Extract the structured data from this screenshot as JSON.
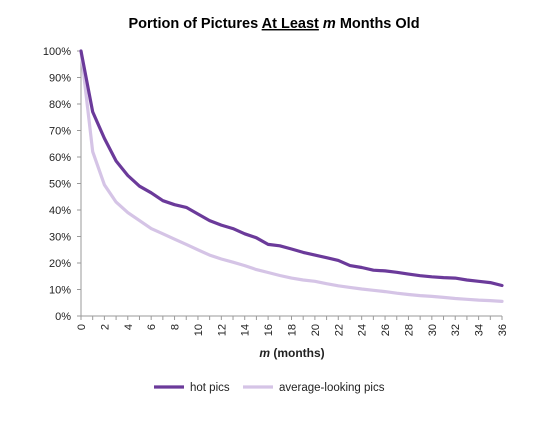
{
  "chart_data": {
    "type": "line",
    "title": {
      "prefix": "Portion of Pictures ",
      "underlined": "At Least",
      "middle": " ",
      "italic": "m",
      "suffix": " Months Old"
    },
    "xlabel": {
      "italic": "m",
      "rest": " (months)"
    },
    "ylabel": "",
    "xlim": [
      0,
      36
    ],
    "ylim": [
      0,
      100
    ],
    "x_ticks": [
      0,
      2,
      4,
      6,
      8,
      10,
      12,
      14,
      16,
      18,
      20,
      22,
      24,
      26,
      28,
      30,
      32,
      34,
      36
    ],
    "y_ticks": [
      "0%",
      "10%",
      "20%",
      "30%",
      "40%",
      "50%",
      "60%",
      "70%",
      "80%",
      "90%",
      "100%"
    ],
    "y_tick_values": [
      0,
      10,
      20,
      30,
      40,
      50,
      60,
      70,
      80,
      90,
      100
    ],
    "grid": false,
    "legend_position": "bottom",
    "x": [
      0,
      1,
      2,
      3,
      4,
      5,
      6,
      7,
      8,
      9,
      10,
      11,
      12,
      13,
      14,
      15,
      16,
      17,
      18,
      19,
      20,
      21,
      22,
      23,
      24,
      25,
      26,
      27,
      28,
      29,
      30,
      31,
      32,
      33,
      34,
      35,
      36
    ],
    "series": [
      {
        "name": "hot pics",
        "color": "#6b3a9a",
        "values": [
          100,
          77,
          67,
          58.5,
          53,
          49,
          46.5,
          43.5,
          42,
          41,
          38.5,
          36,
          34.3,
          33,
          31,
          29.5,
          27,
          26.5,
          25.3,
          24,
          23,
          22,
          21,
          19,
          18.3,
          17.3,
          17,
          16.5,
          15.8,
          15.2,
          14.8,
          14.5,
          14.3,
          13.6,
          13.1,
          12.6,
          11.5
        ]
      },
      {
        "name": "average-looking pics",
        "color": "#d5c4e6",
        "values": [
          100,
          62,
          49.5,
          43,
          39,
          36,
          33,
          31,
          29,
          27,
          25,
          23,
          21.5,
          20.3,
          19,
          17.5,
          16.4,
          15.3,
          14.3,
          13.6,
          13.1,
          12.2,
          11.4,
          10.8,
          10.2,
          9.7,
          9.2,
          8.6,
          8.1,
          7.7,
          7.4,
          7.0,
          6.6,
          6.3,
          6.0,
          5.8,
          5.5
        ]
      }
    ]
  }
}
